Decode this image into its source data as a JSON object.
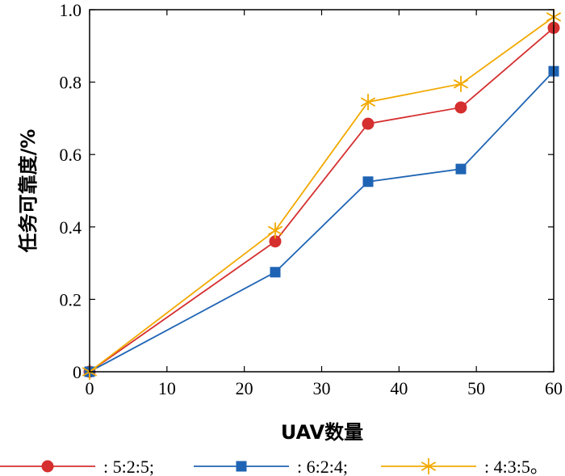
{
  "chart_data": {
    "type": "line",
    "title": "",
    "xlabel": "UAV数量",
    "ylabel": "任务可靠度/%",
    "x": [
      0,
      24,
      36,
      48,
      60
    ],
    "xlim": [
      0,
      60
    ],
    "ylim": [
      0,
      1.0
    ],
    "x_ticks": [
      "0",
      "10",
      "20",
      "30",
      "40",
      "50",
      "60"
    ],
    "y_ticks": [
      "0",
      "0.2",
      "0.4",
      "0.6",
      "0.8",
      "1.0"
    ],
    "grid": false,
    "legend_position": "bottom",
    "series": [
      {
        "name": ": 5:2:5;",
        "color": "#d62f2f",
        "marker": "circle",
        "values": [
          0,
          0.36,
          0.685,
          0.73,
          0.95
        ]
      },
      {
        "name": ": 6:2:4;",
        "color": "#1f64b4",
        "marker": "square",
        "values": [
          0,
          0.275,
          0.525,
          0.56,
          0.83
        ]
      },
      {
        "name": ": 4:3:5。",
        "color": "#f2a900",
        "marker": "asterisk",
        "values": [
          0,
          0.39,
          0.745,
          0.795,
          0.98
        ]
      }
    ]
  }
}
